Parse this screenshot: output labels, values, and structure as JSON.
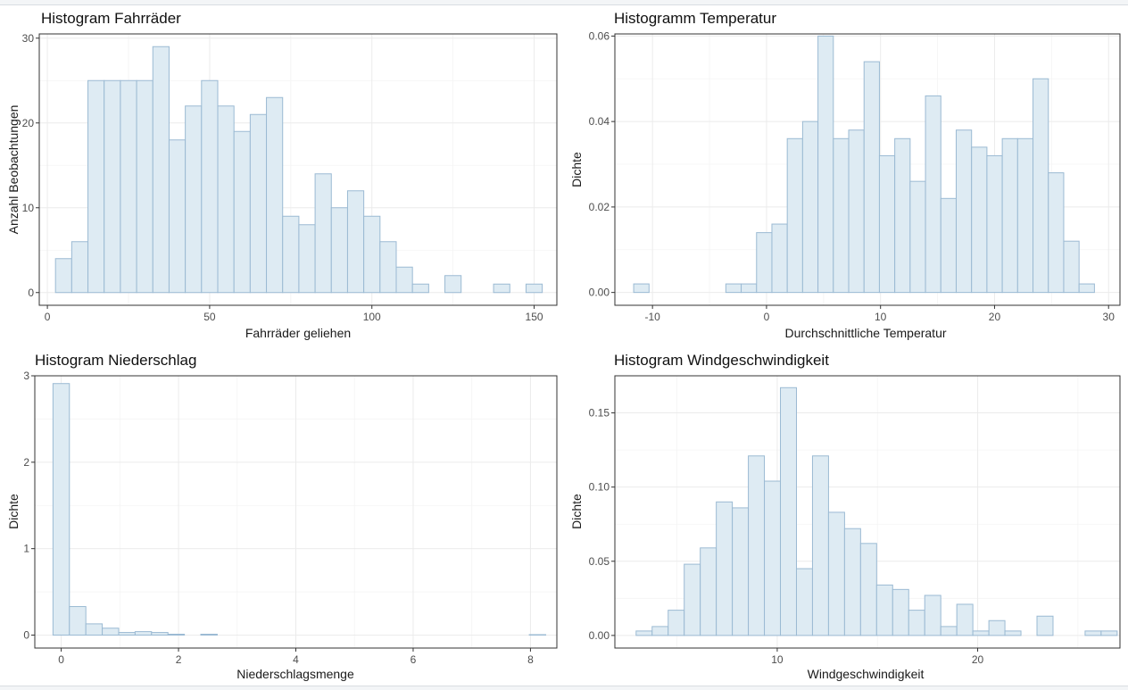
{
  "chart_data": [
    {
      "type": "bar",
      "title": "Histogram Fahrräder",
      "xlabel": "Fahrräder geliehen",
      "ylabel": "Anzahl Beobachtungen",
      "xlim": [
        -2.5,
        157
      ],
      "ylim": [
        -1.5,
        30.5
      ],
      "xticks": [
        0,
        50,
        100,
        150
      ],
      "yticks": [
        0,
        10,
        20,
        30
      ],
      "bin_start": 2.5,
      "bin_width": 5,
      "values": [
        4,
        6,
        25,
        25,
        25,
        25,
        29,
        18,
        22,
        25,
        22,
        19,
        21,
        23,
        9,
        8,
        14,
        10,
        12,
        9,
        6,
        3,
        1,
        0,
        2,
        0,
        0,
        1,
        0,
        1
      ],
      "grid": true
    },
    {
      "type": "bar",
      "title": "Histogramm Temperatur",
      "xlabel": "Durchschnittliche Temperatur",
      "ylabel": "Dichte",
      "xlim": [
        -13.3,
        31.0
      ],
      "ylim": [
        -0.003,
        0.0605
      ],
      "xticks": [
        -10,
        0,
        10,
        20,
        30
      ],
      "yticks": [
        0.0,
        0.02,
        0.04,
        0.06
      ],
      "bin_start": -11.65,
      "bin_width": 1.347,
      "values": [
        0.002,
        0,
        0,
        0,
        0,
        0,
        0.002,
        0.002,
        0.014,
        0.016,
        0.036,
        0.04,
        0.06,
        0.036,
        0.038,
        0.054,
        0.032,
        0.036,
        0.026,
        0.046,
        0.022,
        0.038,
        0.034,
        0.032,
        0.036,
        0.036,
        0.05,
        0.028,
        0.012,
        0.002
      ],
      "grid": true
    },
    {
      "type": "bar",
      "title": "Histogram Niederschlag",
      "xlabel": "Niederschlagsmenge",
      "ylabel": "Dichte",
      "xlim": [
        -0.45,
        8.45
      ],
      "ylim": [
        -0.15,
        3.0
      ],
      "xticks": [
        0,
        2,
        4,
        6,
        8
      ],
      "yticks": [
        0,
        1,
        2,
        3
      ],
      "bin_start": -0.14,
      "bin_width": 0.28,
      "values": [
        2.91,
        0.33,
        0.13,
        0.08,
        0.03,
        0.04,
        0.03,
        0.01,
        0,
        0.01,
        0,
        0,
        0,
        0,
        0,
        0,
        0,
        0,
        0,
        0,
        0,
        0,
        0,
        0,
        0,
        0,
        0,
        0,
        0,
        0.005
      ],
      "grid": true
    },
    {
      "type": "bar",
      "title": "Histogram Windgeschwindigkeit",
      "xlabel": "Windgeschwindigkeit",
      "ylabel": "Dichte",
      "xlim": [
        1.9,
        27.1
      ],
      "ylim": [
        -0.0085,
        0.175
      ],
      "xticks": [
        10,
        20
      ],
      "yticks": [
        0.0,
        0.05,
        0.1,
        0.15
      ],
      "bin_start": 2.96,
      "bin_width": 0.8,
      "values": [
        0.003,
        0.006,
        0.017,
        0.048,
        0.059,
        0.09,
        0.086,
        0.121,
        0.104,
        0.167,
        0.045,
        0.121,
        0.083,
        0.072,
        0.062,
        0.034,
        0.031,
        0.017,
        0.027,
        0.006,
        0.021,
        0.003,
        0.01,
        0.003,
        0,
        0.013,
        0,
        0,
        0.003,
        0.003
      ],
      "grid": true
    }
  ]
}
